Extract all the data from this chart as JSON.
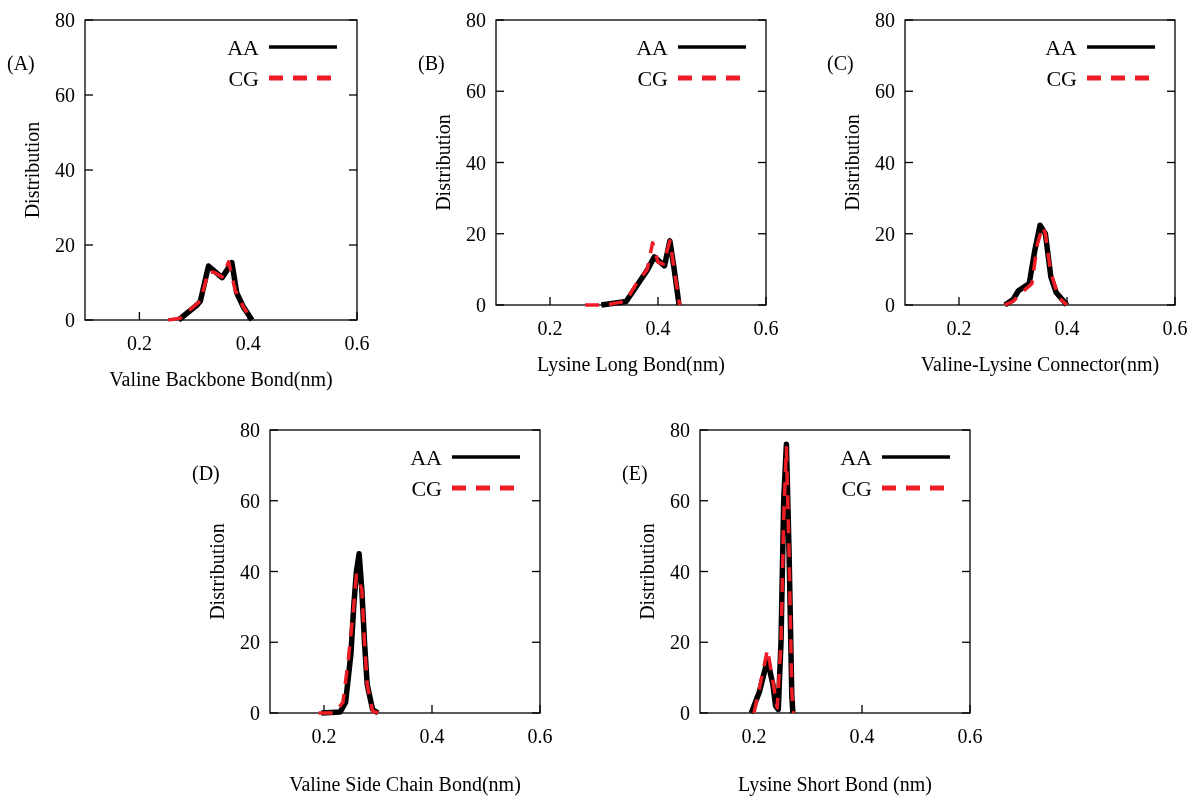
{
  "chart_data": [
    {
      "type": "line",
      "xlabel": "Valine Backbone Bond(nm)",
      "ylabel": "Distribution",
      "annotations": [
        "(A)"
      ],
      "xlim": [
        0.1,
        0.6
      ],
      "xticks": [
        0.2,
        0.4,
        0.6
      ],
      "ylim": [
        0,
        80
      ],
      "yticks": [
        0,
        20,
        40,
        60,
        80
      ],
      "legend": "top right",
      "grid": false,
      "series": [
        {
          "name": "AA",
          "color": "#000000",
          "line_style": "solid",
          "x": [
            0.272,
            0.306,
            0.312,
            0.327,
            0.352,
            0.37,
            0.379,
            0.391,
            0.407
          ],
          "values": [
            0,
            4,
            5,
            14.4,
            11.3,
            15.3,
            7.2,
            3.5,
            0
          ]
        },
        {
          "name": "CG",
          "color": "#ee1c25",
          "line_style": "dashed",
          "x": [
            0.253,
            0.275,
            0.299,
            0.312,
            0.327,
            0.339,
            0.352,
            0.364,
            0.376,
            0.391,
            0.398
          ],
          "values": [
            0,
            0.5,
            3.5,
            5,
            13,
            12.6,
            11.5,
            15.5,
            8,
            3.5,
            2
          ]
        }
      ]
    },
    {
      "type": "line",
      "xlabel": "Lysine Long Bond(nm)",
      "ylabel": "Distribution",
      "annotations": [
        "(B)"
      ],
      "xlim": [
        0.1,
        0.6
      ],
      "xticks": [
        0.2,
        0.4,
        0.6
      ],
      "ylim": [
        0,
        80
      ],
      "yticks": [
        0,
        20,
        40,
        60,
        80
      ],
      "legend": "top right",
      "grid": false,
      "series": [
        {
          "name": "AA",
          "color": "#000000",
          "line_style": "solid",
          "x": [
            0.295,
            0.341,
            0.362,
            0.381,
            0.393,
            0.412,
            0.422,
            0.43,
            0.439
          ],
          "values": [
            0,
            1,
            5.7,
            10,
            13.5,
            11,
            18,
            10,
            0
          ]
        },
        {
          "name": "CG",
          "color": "#ee1c25",
          "line_style": "dashed",
          "x": [
            0.265,
            0.3,
            0.34,
            0.36,
            0.38,
            0.39,
            0.4,
            0.41,
            0.422,
            0.43,
            0.44
          ],
          "values": [
            0,
            0,
            1,
            6,
            10,
            17.5,
            12,
            11.5,
            18,
            10,
            0
          ]
        }
      ]
    },
    {
      "type": "line",
      "xlabel": "Valine-Lysine Connector(nm)",
      "ylabel": "Distribution",
      "annotations": [
        "(C)"
      ],
      "xlim": [
        0.1,
        0.6
      ],
      "xticks": [
        0.2,
        0.4,
        0.6
      ],
      "ylim": [
        0,
        80
      ],
      "yticks": [
        0,
        20,
        40,
        60,
        80
      ],
      "legend": "top right",
      "grid": false,
      "series": [
        {
          "name": "AA",
          "color": "#000000",
          "line_style": "solid",
          "x": [
            0.285,
            0.3,
            0.31,
            0.33,
            0.34,
            0.35,
            0.36,
            0.37,
            0.38,
            0.4
          ],
          "values": [
            0,
            1.5,
            4,
            6,
            15,
            22.4,
            20,
            8,
            3.5,
            0
          ]
        },
        {
          "name": "CG",
          "color": "#ee1c25",
          "line_style": "dashed",
          "x": [
            0.285,
            0.3,
            0.32,
            0.335,
            0.345,
            0.355,
            0.36,
            0.37,
            0.385,
            0.4
          ],
          "values": [
            0,
            1,
            4,
            6,
            17,
            22,
            20,
            9,
            2,
            0
          ]
        }
      ]
    },
    {
      "type": "line",
      "xlabel": "Valine Side Chain Bond(nm)",
      "ylabel": "Distribution",
      "annotations": [
        "(D)"
      ],
      "xlim": [
        0.1,
        0.6
      ],
      "xticks": [
        0.2,
        0.4,
        0.6
      ],
      "ylim": [
        0,
        80
      ],
      "yticks": [
        0,
        20,
        40,
        60,
        80
      ],
      "legend": "top right",
      "grid": false,
      "series": [
        {
          "name": "AA",
          "color": "#000000",
          "line_style": "solid",
          "x": [
            0.195,
            0.23,
            0.24,
            0.25,
            0.255,
            0.26,
            0.265,
            0.27,
            0.275,
            0.28,
            0.29,
            0.3
          ],
          "values": [
            0,
            0.3,
            3,
            17,
            30,
            40,
            45,
            35,
            20,
            8,
            1,
            0
          ]
        },
        {
          "name": "CG",
          "color": "#ee1c25",
          "line_style": "dashed",
          "x": [
            0.19,
            0.22,
            0.235,
            0.245,
            0.255,
            0.26,
            0.27,
            0.275,
            0.28,
            0.29,
            0.3
          ],
          "values": [
            0,
            0,
            3,
            15,
            30,
            39,
            35,
            20,
            8,
            0.5,
            0
          ]
        }
      ]
    },
    {
      "type": "line",
      "xlabel": "Lysine Short Bond (nm)",
      "ylabel": "Distribution",
      "annotations": [
        "(E)"
      ],
      "xlim": [
        0.1,
        0.6
      ],
      "xticks": [
        0.2,
        0.4,
        0.6
      ],
      "ylim": [
        0,
        80
      ],
      "yticks": [
        0,
        20,
        40,
        60,
        80
      ],
      "legend": "top right",
      "grid": false,
      "series": [
        {
          "name": "AA",
          "color": "#000000",
          "line_style": "solid",
          "x": [
            0.195,
            0.21,
            0.225,
            0.235,
            0.24,
            0.245,
            0.25,
            0.255,
            0.26,
            0.265,
            0.27,
            0.272
          ],
          "values": [
            0,
            6,
            15,
            8,
            2,
            1,
            20,
            60,
            76,
            45,
            5,
            0
          ]
        },
        {
          "name": "CG",
          "color": "#ee1c25",
          "line_style": "dashed",
          "x": [
            0.2,
            0.21,
            0.225,
            0.235,
            0.243,
            0.25,
            0.255,
            0.26,
            0.265,
            0.27,
            0.273
          ],
          "values": [
            0,
            7,
            18,
            9,
            1.5,
            20,
            55,
            75,
            45,
            6,
            0
          ]
        }
      ]
    }
  ]
}
